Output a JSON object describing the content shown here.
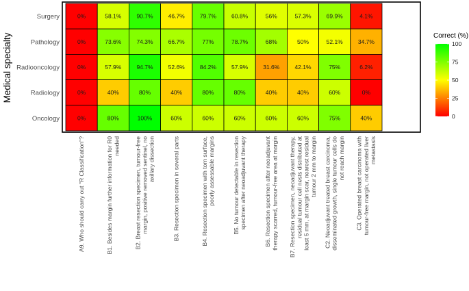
{
  "chart_data": {
    "type": "heatmap",
    "ylabel": "Medical specialty",
    "xlabel": "",
    "rows": [
      "Surgery",
      "Pathology",
      "Radiooncology",
      "Radiology",
      "Oncology"
    ],
    "columns": [
      "A9. Who should carry out \"R Classification\"?",
      "B1. Besides margin further information for R0 needed",
      "B2. Breast resection specimen, tumour-free margin, positive removed sentinel, no axillary dissection",
      "B3. Resection specimen in several parts",
      "B4. Resection specimen with torn surface, poorly assessable margins",
      "B5. No tumour detectable in resection specimen after neoadjuvant therapy",
      "B6. Resection specimen after neoadjuvant therapy scarred, tumour-free area at margin",
      "B7. Resection specimen, neoadjuvant therapy, residual tumour cell nests distributed at least 5 mm, at margin scar, nearest residual tumour 2 mm to margin",
      "C2. Neoadjuvant treated breast carcinoma, disseminated growth, single tumour cells do not reach margin",
      "C3. Operated breast carcinoma with tumour-free margin, not operated liver metastasis"
    ],
    "column_lines": [
      [
        "A9. Who should carry out \"R Classification\"?"
      ],
      [
        "B1. Besides margin further information for R0",
        "needed"
      ],
      [
        "B2. Breast resection specimen, tumour-free",
        "margin, positive removed sentinel, no",
        "axillary dissection"
      ],
      [
        "B3. Resection specimen in several parts"
      ],
      [
        "B4. Resection specimen with torn surface,",
        "poorly assessable margins"
      ],
      [
        "B5. No tumour detectable in resection",
        "specimen after neoadjuvant therapy"
      ],
      [
        "B6. Resection specimen after neoadjuvant",
        "therapy scarred, tumour-free area at margin"
      ],
      [
        "B7. Resection specimen, neoadjuvant therapy,",
        "residual tumour cell nests distributed at",
        "least 5 mm, at margin scar, nearest residual",
        "tumour 2 mm to margin"
      ],
      [
        "C2. Neoadjuvant treated breast carcinoma,",
        "disseminated growth, single tumour cells do",
        "not reach margin"
      ],
      [
        "C3. Operated breast carcinoma with",
        "tumour-free margin, not operated liver",
        "metastasis"
      ]
    ],
    "values": [
      [
        0,
        58.1,
        90.7,
        46.7,
        79.7,
        60.8,
        56,
        57.3,
        69.9,
        4.1
      ],
      [
        0,
        73.6,
        74.3,
        66.7,
        77,
        78.7,
        68,
        50,
        52.1,
        34.7
      ],
      [
        0,
        57.9,
        94.7,
        52.6,
        84.2,
        57.9,
        31.6,
        42.1,
        75,
        6.2
      ],
      [
        0,
        40,
        80,
        40,
        80,
        80,
        40,
        40,
        60,
        0
      ],
      [
        0,
        80,
        100,
        60,
        60,
        60,
        60,
        60,
        75,
        40
      ]
    ],
    "labels": [
      [
        "0%",
        "58.1%",
        "90.7%",
        "46.7%",
        "79.7%",
        "60.8%",
        "56%",
        "57.3%",
        "69.9%",
        "4.1%"
      ],
      [
        "0%",
        "73.6%",
        "74.3%",
        "66.7%",
        "77%",
        "78.7%",
        "68%",
        "50%",
        "52.1%",
        "34.7%"
      ],
      [
        "0%",
        "57.9%",
        "94.7%",
        "52.6%",
        "84.2%",
        "57.9%",
        "31.6%",
        "42.1%",
        "75%",
        "6.2%"
      ],
      [
        "0%",
        "40%",
        "80%",
        "40%",
        "80%",
        "80%",
        "40%",
        "40%",
        "60%",
        "0%"
      ],
      [
        "0%",
        "80%",
        "100%",
        "60%",
        "60%",
        "60%",
        "60%",
        "60%",
        "75%",
        "40%"
      ]
    ],
    "colorbar": {
      "title": "Correct (%)",
      "range": [
        0,
        100
      ],
      "ticks": [
        "0",
        "25",
        "50",
        "75",
        "100"
      ],
      "colors": [
        "#ff0000",
        "#ffff00",
        "#00ff00"
      ]
    },
    "legend": "right"
  }
}
